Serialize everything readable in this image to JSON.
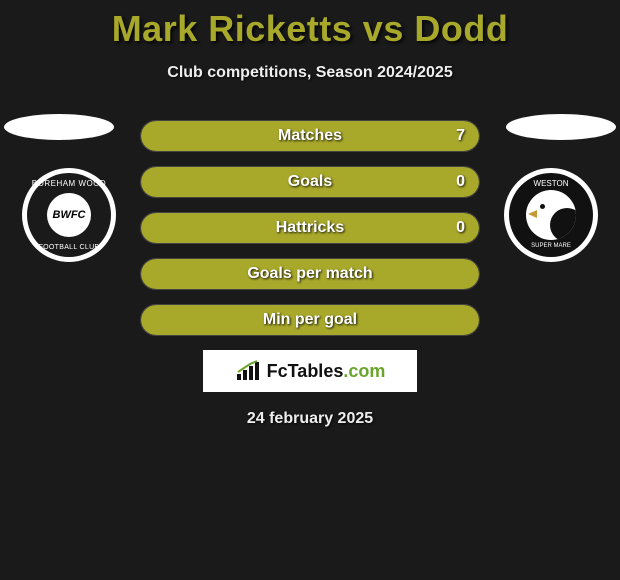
{
  "title": "Mark Ricketts vs Dodd",
  "subtitle": "Club competitions, Season 2024/2025",
  "date": "24 february 2025",
  "colors": {
    "accent": "#a8a82b",
    "background": "#1a1a1a",
    "text": "#ffffff",
    "brand_green": "#6aa52b"
  },
  "left_club": {
    "top_text": "BOREHAM WOOD",
    "bottom_text": "FOOTBALL CLUB",
    "initials": "BWFC"
  },
  "right_club": {
    "top_text": "WESTON",
    "bottom_text": "SUPER MARE"
  },
  "stats": [
    {
      "label": "Matches",
      "value": "7",
      "fill_pct": 100
    },
    {
      "label": "Goals",
      "value": "0",
      "fill_pct": 100
    },
    {
      "label": "Hattricks",
      "value": "0",
      "fill_pct": 100
    },
    {
      "label": "Goals per match",
      "value": "",
      "fill_pct": 100
    },
    {
      "label": "Min per goal",
      "value": "",
      "fill_pct": 100
    }
  ],
  "brand": {
    "name_plain": "FcTables",
    "suffix": ".com"
  }
}
